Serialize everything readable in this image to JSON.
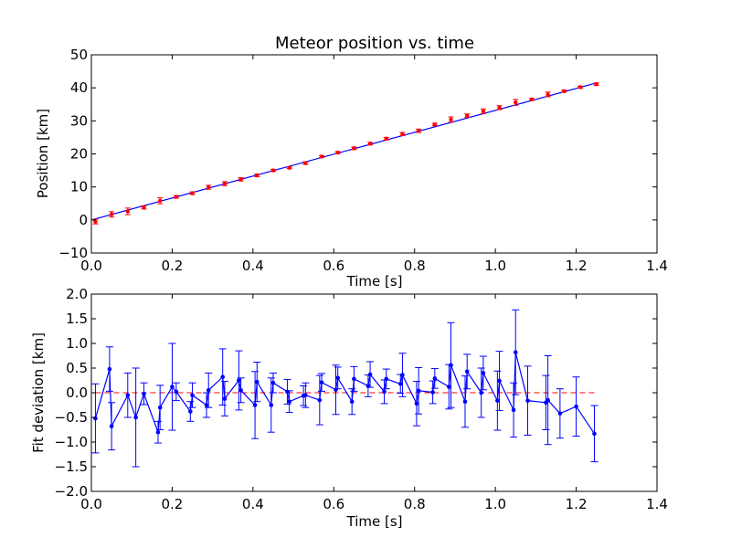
{
  "chart_data": [
    {
      "type": "scatter",
      "title": "Meteor position vs. time",
      "xlabel": "Time [s]",
      "ylabel": "Position [km]",
      "xlim": [
        0.0,
        1.4
      ],
      "ylim": [
        -10,
        50
      ],
      "xticks": [
        "0.0",
        "0.2",
        "0.4",
        "0.6",
        "0.8",
        "1.0",
        "1.2",
        "1.4"
      ],
      "yticks": [
        "−10",
        "0",
        "10",
        "20",
        "30",
        "40",
        "50"
      ],
      "grid": false,
      "colors": {
        "points": "#ff0000",
        "fit": "#0000ff",
        "axes": "#000000"
      },
      "series": [
        {
          "kind": "points_with_errorbars",
          "x": [
            0.01,
            0.05,
            0.09,
            0.13,
            0.17,
            0.21,
            0.25,
            0.29,
            0.33,
            0.37,
            0.41,
            0.45,
            0.49,
            0.53,
            0.57,
            0.61,
            0.65,
            0.69,
            0.73,
            0.77,
            0.81,
            0.85,
            0.89,
            0.93,
            0.97,
            1.01,
            1.05,
            1.09,
            1.13,
            1.17,
            1.21,
            1.25
          ],
          "y": [
            -0.5,
            1.7,
            2.6,
            3.8,
            5.8,
            7.0,
            8.1,
            9.9,
            11.0,
            12.3,
            13.5,
            15.0,
            15.8,
            17.2,
            19.2,
            20.4,
            21.7,
            23.1,
            24.6,
            26.0,
            27.0,
            28.9,
            30.4,
            31.6,
            32.9,
            34.0,
            35.6,
            36.5,
            38.0,
            39.0,
            40.2,
            41.1
          ],
          "yerr": [
            0.7,
            0.8,
            1.0,
            0.5,
            0.9,
            0.4,
            0.4,
            0.6,
            0.6,
            0.5,
            0.4,
            0.3,
            0.3,
            0.4,
            0.3,
            0.3,
            0.4,
            0.4,
            0.4,
            0.5,
            0.5,
            0.4,
            0.8,
            0.5,
            0.7,
            0.6,
            0.9,
            0.3,
            0.7,
            0.3,
            0.3,
            0.4
          ]
        },
        {
          "kind": "fit_line",
          "x": [
            0.0,
            1.245
          ],
          "y": [
            0.0,
            41.3
          ]
        }
      ]
    },
    {
      "type": "line",
      "xlabel": "Time [s]",
      "ylabel": "Fit deviation [km]",
      "xlim": [
        0.0,
        1.4
      ],
      "ylim": [
        -2.0,
        2.0
      ],
      "xticks": [
        "0.0",
        "0.2",
        "0.4",
        "0.6",
        "0.8",
        "1.0",
        "1.2",
        "1.4"
      ],
      "yticks": [
        "−2.0",
        "−1.5",
        "−1.0",
        "−0.5",
        "0.0",
        "0.5",
        "1.0",
        "1.5",
        "2.0"
      ],
      "grid": false,
      "reference_line": {
        "y": 0.0,
        "style": "dashed",
        "color": "#ff0000"
      },
      "colors": {
        "series": "#0000ff",
        "axes": "#000000"
      },
      "series": [
        {
          "x": [
            0.01,
            0.045,
            0.05,
            0.09,
            0.11,
            0.13,
            0.165,
            0.17,
            0.2,
            0.21,
            0.245,
            0.25,
            0.285,
            0.29,
            0.325,
            0.33,
            0.365,
            0.37,
            0.405,
            0.41,
            0.445,
            0.45,
            0.485,
            0.49,
            0.525,
            0.53,
            0.565,
            0.57,
            0.605,
            0.61,
            0.645,
            0.65,
            0.685,
            0.69,
            0.725,
            0.73,
            0.765,
            0.77,
            0.805,
            0.81,
            0.845,
            0.85,
            0.885,
            0.89,
            0.925,
            0.93,
            0.965,
            0.97,
            1.005,
            1.01,
            1.045,
            1.05,
            1.08,
            1.125,
            1.13,
            1.16,
            1.2,
            1.245
          ],
          "y": [
            -0.52,
            0.48,
            -0.68,
            -0.05,
            -0.5,
            -0.02,
            -0.8,
            -0.3,
            0.12,
            0.02,
            -0.38,
            -0.05,
            -0.25,
            0.05,
            0.32,
            -0.12,
            0.25,
            0.05,
            -0.25,
            0.22,
            -0.25,
            0.2,
            0.02,
            -0.18,
            -0.06,
            -0.05,
            -0.15,
            0.21,
            0.06,
            0.3,
            -0.18,
            0.28,
            0.14,
            0.37,
            0.02,
            0.28,
            0.18,
            0.36,
            -0.22,
            0.04,
            0.01,
            0.29,
            0.12,
            0.56,
            -0.18,
            0.43,
            0.0,
            0.4,
            -0.16,
            0.24,
            -0.35,
            0.82,
            -0.16,
            -0.2,
            -0.15,
            -0.42,
            -0.28,
            -0.83
          ],
          "yerr": [
            0.7,
            0.45,
            0.48,
            0.45,
            1.0,
            0.22,
            0.22,
            0.45,
            0.88,
            0.18,
            0.2,
            0.25,
            0.25,
            0.35,
            0.57,
            0.35,
            0.6,
            0.25,
            0.68,
            0.4,
            0.55,
            0.2,
            0.25,
            0.22,
            0.2,
            0.25,
            0.5,
            0.18,
            0.5,
            0.22,
            0.26,
            0.25,
            0.22,
            0.26,
            0.24,
            0.2,
            0.19,
            0.44,
            0.45,
            0.47,
            0.23,
            0.2,
            0.45,
            0.86,
            0.52,
            0.35,
            0.5,
            0.34,
            0.6,
            0.6,
            0.55,
            0.86,
            0.7,
            0.55,
            0.9,
            0.5,
            0.6,
            0.57
          ]
        }
      ]
    }
  ]
}
